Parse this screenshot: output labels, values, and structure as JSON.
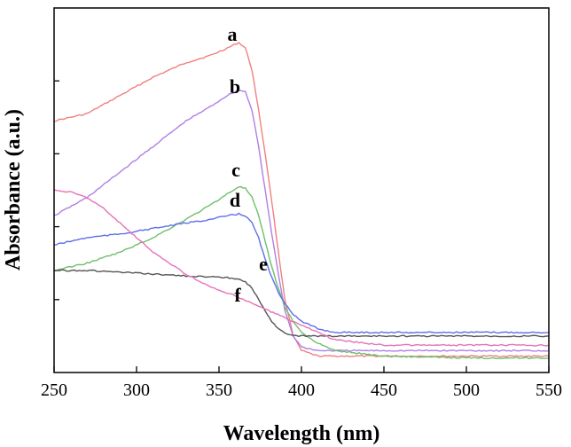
{
  "chart_data": {
    "type": "line",
    "title": "",
    "xlabel": "Wavelength (nm)",
    "ylabel": "Absorbance (a.u.)",
    "xlim": [
      250,
      550
    ],
    "ylim": [
      0,
      1
    ],
    "xticks": [
      "250",
      "300",
      "350",
      "400",
      "450",
      "500",
      "550"
    ],
    "y_tick_labels_shown": false,
    "grid": false,
    "legend": "none (curves labeled inline a–f)",
    "series": [
      {
        "name": "a",
        "color": "#f08080",
        "x": [
          250,
          270,
          290,
          310,
          330,
          345,
          355,
          362,
          366,
          370,
          374,
          378,
          382,
          386,
          390,
          395,
          400,
          410,
          420,
          450,
          500,
          550
        ],
        "y": [
          0.69,
          0.71,
          0.76,
          0.81,
          0.85,
          0.87,
          0.89,
          0.905,
          0.89,
          0.83,
          0.72,
          0.6,
          0.47,
          0.33,
          0.2,
          0.1,
          0.06,
          0.045,
          0.045,
          0.045,
          0.045,
          0.045
        ]
      },
      {
        "name": "b",
        "color": "#b07fe6",
        "x": [
          250,
          270,
          290,
          310,
          330,
          345,
          355,
          362,
          366,
          370,
          374,
          378,
          382,
          386,
          390,
          395,
          400,
          410,
          420,
          450,
          500,
          550
        ],
        "y": [
          0.43,
          0.48,
          0.55,
          0.62,
          0.69,
          0.73,
          0.76,
          0.775,
          0.77,
          0.72,
          0.62,
          0.5,
          0.38,
          0.27,
          0.17,
          0.1,
          0.07,
          0.06,
          0.06,
          0.06,
          0.06,
          0.06
        ]
      },
      {
        "name": "c",
        "color": "#6dbf6d",
        "x": [
          250,
          270,
          290,
          310,
          330,
          345,
          355,
          362,
          366,
          370,
          374,
          378,
          382,
          386,
          390,
          395,
          400,
          410,
          420,
          450,
          500,
          550
        ],
        "y": [
          0.28,
          0.3,
          0.33,
          0.37,
          0.42,
          0.46,
          0.49,
          0.51,
          0.505,
          0.48,
          0.43,
          0.36,
          0.29,
          0.23,
          0.18,
          0.14,
          0.11,
          0.08,
          0.06,
          0.045,
          0.04,
          0.04
        ]
      },
      {
        "name": "d",
        "color": "#5f6fe6",
        "x": [
          250,
          270,
          290,
          310,
          330,
          345,
          355,
          362,
          366,
          370,
          374,
          378,
          382,
          386,
          390,
          395,
          400,
          410,
          420,
          450,
          500,
          550
        ],
        "y": [
          0.35,
          0.37,
          0.38,
          0.395,
          0.41,
          0.42,
          0.43,
          0.435,
          0.43,
          0.41,
          0.37,
          0.31,
          0.26,
          0.22,
          0.19,
          0.16,
          0.14,
          0.12,
          0.11,
          0.11,
          0.11,
          0.11
        ]
      },
      {
        "name": "e",
        "color": "#555555",
        "x": [
          250,
          270,
          290,
          310,
          330,
          345,
          355,
          362,
          366,
          370,
          374,
          378,
          382,
          386,
          390,
          395,
          400,
          410,
          420,
          450,
          500,
          550
        ],
        "y": [
          0.28,
          0.28,
          0.275,
          0.27,
          0.265,
          0.262,
          0.26,
          0.255,
          0.25,
          0.23,
          0.2,
          0.17,
          0.14,
          0.12,
          0.11,
          0.1,
          0.1,
          0.1,
          0.1,
          0.1,
          0.1,
          0.1
        ]
      },
      {
        "name": "f",
        "color": "#e672b8",
        "x": [
          250,
          260,
          270,
          280,
          290,
          300,
          310,
          320,
          330,
          340,
          350,
          360,
          370,
          380,
          390,
          400,
          420,
          450,
          500,
          550
        ],
        "y": [
          0.5,
          0.495,
          0.48,
          0.45,
          0.41,
          0.37,
          0.33,
          0.3,
          0.27,
          0.245,
          0.225,
          0.21,
          0.19,
          0.17,
          0.15,
          0.13,
          0.09,
          0.075,
          0.075,
          0.075
        ]
      }
    ]
  }
}
